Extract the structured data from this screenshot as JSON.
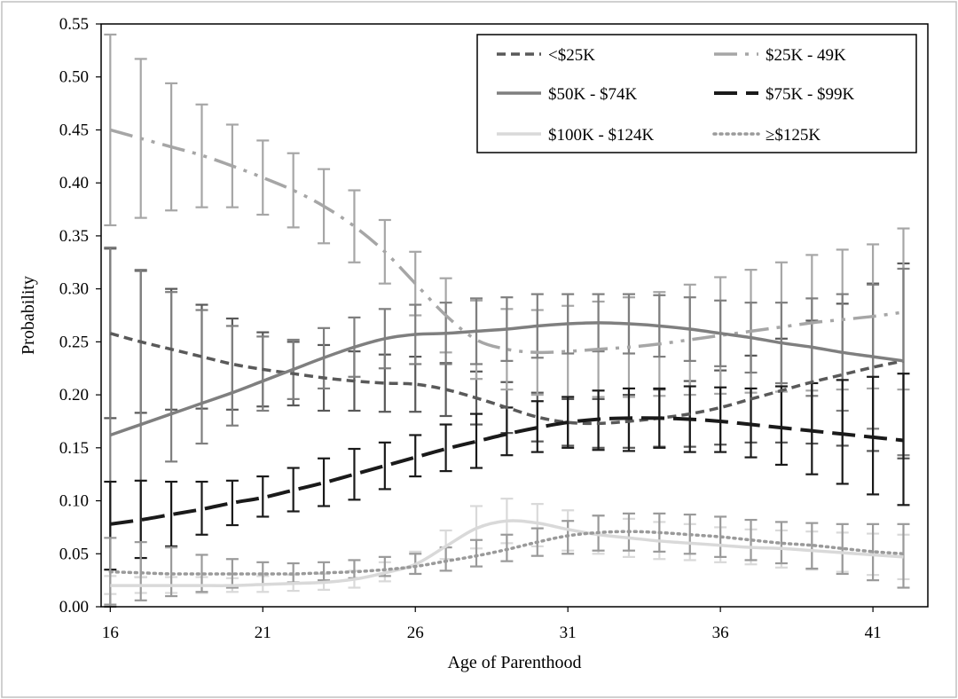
{
  "chart_data": {
    "type": "line",
    "title": "",
    "xlabel": "Age of Parenthood",
    "ylabel": "Probability",
    "xlim": [
      15.7,
      42.8
    ],
    "ylim": [
      0,
      0.55
    ],
    "x_ticks": [
      16,
      21,
      26,
      31,
      36,
      41
    ],
    "x_tick_labels": [
      "16",
      "21",
      "26",
      "31",
      "36",
      "41"
    ],
    "y_ticks": [
      0,
      0.05,
      0.1,
      0.15,
      0.2,
      0.25,
      0.3,
      0.35,
      0.4,
      0.45,
      0.5,
      0.55
    ],
    "y_tick_labels": [
      "0.00",
      "0.05",
      "0.10",
      "0.15",
      "0.20",
      "0.25",
      "0.30",
      "0.35",
      "0.40",
      "0.45",
      "0.50",
      "0.55"
    ],
    "grid": false,
    "legend_position": "top-right",
    "x": [
      16,
      17,
      18,
      19,
      20,
      21,
      22,
      23,
      24,
      25,
      26,
      27,
      28,
      29,
      30,
      31,
      32,
      33,
      34,
      35,
      36,
      37,
      38,
      39,
      40,
      41,
      42
    ],
    "series": [
      {
        "name": "<$25K",
        "color": "#595959",
        "dash": "10,6",
        "width": 3.5,
        "values": [
          0.258,
          0.25,
          0.243,
          0.236,
          0.229,
          0.224,
          0.22,
          0.216,
          0.213,
          0.211,
          0.21,
          0.205,
          0.197,
          0.188,
          0.179,
          0.174,
          0.173,
          0.175,
          0.178,
          0.182,
          0.188,
          0.196,
          0.204,
          0.212,
          0.219,
          0.226,
          0.232
        ],
        "lower": [
          0.178,
          0.183,
          0.186,
          0.187,
          0.186,
          0.189,
          0.19,
          0.185,
          0.185,
          0.184,
          0.184,
          0.18,
          0.172,
          0.164,
          0.156,
          0.152,
          0.15,
          0.15,
          0.151,
          0.151,
          0.153,
          0.155,
          0.155,
          0.154,
          0.152,
          0.147,
          0.14
        ],
        "upper": [
          0.338,
          0.317,
          0.3,
          0.285,
          0.272,
          0.259,
          0.25,
          0.247,
          0.241,
          0.238,
          0.236,
          0.23,
          0.222,
          0.212,
          0.202,
          0.196,
          0.196,
          0.2,
          0.205,
          0.213,
          0.223,
          0.237,
          0.253,
          0.27,
          0.286,
          0.305,
          0.324
        ]
      },
      {
        "name": "$25K - 49K",
        "color": "#a6a6a6",
        "dash": "26,9,4,9,4,9",
        "width": 3.5,
        "values": [
          0.45,
          0.442,
          0.434,
          0.426,
          0.416,
          0.405,
          0.393,
          0.378,
          0.359,
          0.335,
          0.305,
          0.275,
          0.252,
          0.243,
          0.24,
          0.241,
          0.243,
          0.245,
          0.248,
          0.252,
          0.256,
          0.26,
          0.264,
          0.268,
          0.271,
          0.274,
          0.278
        ],
        "lower": [
          0.36,
          0.367,
          0.374,
          0.377,
          0.377,
          0.37,
          0.358,
          0.343,
          0.325,
          0.305,
          0.275,
          0.24,
          0.215,
          0.205,
          0.2,
          0.198,
          0.198,
          0.198,
          0.199,
          0.2,
          0.201,
          0.202,
          0.203,
          0.204,
          0.205,
          0.206,
          0.205
        ],
        "upper": [
          0.54,
          0.517,
          0.494,
          0.474,
          0.455,
          0.44,
          0.428,
          0.413,
          0.393,
          0.365,
          0.335,
          0.31,
          0.289,
          0.281,
          0.28,
          0.284,
          0.288,
          0.292,
          0.297,
          0.304,
          0.311,
          0.318,
          0.325,
          0.332,
          0.337,
          0.342,
          0.357
        ]
      },
      {
        "name": "$50K - $74K",
        "color": "#7f7f7f",
        "dash": "",
        "width": 3.5,
        "values": [
          0.162,
          0.172,
          0.182,
          0.192,
          0.202,
          0.213,
          0.224,
          0.235,
          0.245,
          0.253,
          0.257,
          0.258,
          0.26,
          0.262,
          0.265,
          0.267,
          0.268,
          0.267,
          0.265,
          0.262,
          0.258,
          0.254,
          0.249,
          0.245,
          0.24,
          0.236,
          0.232
        ],
        "lower": [
          0.0,
          0.028,
          0.137,
          0.154,
          0.171,
          0.185,
          0.196,
          0.206,
          0.217,
          0.225,
          0.229,
          0.229,
          0.229,
          0.232,
          0.235,
          0.239,
          0.241,
          0.239,
          0.236,
          0.232,
          0.227,
          0.221,
          0.211,
          0.199,
          0.185,
          0.168,
          0.143
        ],
        "upper": [
          0.339,
          0.318,
          0.297,
          0.28,
          0.265,
          0.255,
          0.252,
          0.263,
          0.273,
          0.281,
          0.285,
          0.287,
          0.291,
          0.292,
          0.295,
          0.295,
          0.295,
          0.295,
          0.294,
          0.292,
          0.289,
          0.287,
          0.287,
          0.291,
          0.295,
          0.304,
          0.319
        ]
      },
      {
        "name": "$75K - $99K",
        "color": "#1a1a1a",
        "dash": "26,10",
        "width": 4,
        "values": [
          0.078,
          0.082,
          0.087,
          0.092,
          0.098,
          0.103,
          0.11,
          0.117,
          0.125,
          0.133,
          0.141,
          0.149,
          0.156,
          0.163,
          0.169,
          0.174,
          0.177,
          0.178,
          0.178,
          0.177,
          0.175,
          0.172,
          0.169,
          0.166,
          0.163,
          0.16,
          0.157
        ],
        "lower": [
          0.035,
          0.046,
          0.057,
          0.068,
          0.077,
          0.085,
          0.09,
          0.095,
          0.101,
          0.111,
          0.123,
          0.128,
          0.131,
          0.143,
          0.146,
          0.15,
          0.148,
          0.147,
          0.15,
          0.146,
          0.146,
          0.141,
          0.134,
          0.125,
          0.116,
          0.106,
          0.096
        ],
        "upper": [
          0.118,
          0.119,
          0.118,
          0.118,
          0.119,
          0.123,
          0.131,
          0.14,
          0.149,
          0.155,
          0.162,
          0.172,
          0.182,
          0.188,
          0.194,
          0.198,
          0.204,
          0.206,
          0.206,
          0.208,
          0.207,
          0.206,
          0.208,
          0.211,
          0.214,
          0.217,
          0.22
        ]
      },
      {
        "name": "$100K - $124K",
        "color": "#d9d9d9",
        "dash": "",
        "width": 3.5,
        "values": [
          0.02,
          0.02,
          0.02,
          0.02,
          0.02,
          0.021,
          0.022,
          0.023,
          0.026,
          0.032,
          0.04,
          0.057,
          0.074,
          0.081,
          0.079,
          0.073,
          0.068,
          0.065,
          0.062,
          0.06,
          0.058,
          0.056,
          0.055,
          0.053,
          0.051,
          0.049,
          0.047
        ],
        "lower": [
          0.012,
          0.013,
          0.013,
          0.013,
          0.014,
          0.014,
          0.015,
          0.016,
          0.018,
          0.024,
          0.031,
          0.045,
          0.055,
          0.06,
          0.057,
          0.053,
          0.05,
          0.047,
          0.045,
          0.044,
          0.042,
          0.04,
          0.037,
          0.035,
          0.033,
          0.03,
          0.026
        ],
        "upper": [
          0.029,
          0.028,
          0.028,
          0.028,
          0.027,
          0.029,
          0.03,
          0.031,
          0.034,
          0.042,
          0.052,
          0.072,
          0.095,
          0.102,
          0.097,
          0.091,
          0.086,
          0.083,
          0.08,
          0.078,
          0.075,
          0.073,
          0.072,
          0.071,
          0.07,
          0.069,
          0.068
        ]
      },
      {
        "name": "≥$125K",
        "color": "#9a9a9a",
        "dash": "2,5",
        "width": 3.5,
        "values": [
          0.033,
          0.032,
          0.031,
          0.031,
          0.031,
          0.031,
          0.031,
          0.032,
          0.033,
          0.035,
          0.038,
          0.043,
          0.048,
          0.054,
          0.061,
          0.067,
          0.07,
          0.071,
          0.07,
          0.068,
          0.066,
          0.063,
          0.06,
          0.058,
          0.055,
          0.052,
          0.05
        ],
        "lower": [
          0.002,
          0.006,
          0.01,
          0.014,
          0.018,
          0.021,
          0.023,
          0.025,
          0.027,
          0.029,
          0.031,
          0.034,
          0.038,
          0.043,
          0.048,
          0.05,
          0.053,
          0.053,
          0.052,
          0.05,
          0.047,
          0.044,
          0.041,
          0.036,
          0.031,
          0.025,
          0.018
        ],
        "upper": [
          0.065,
          0.061,
          0.056,
          0.049,
          0.045,
          0.042,
          0.041,
          0.042,
          0.044,
          0.047,
          0.05,
          0.056,
          0.063,
          0.068,
          0.074,
          0.081,
          0.086,
          0.088,
          0.088,
          0.087,
          0.085,
          0.082,
          0.08,
          0.079,
          0.078,
          0.078,
          0.078
        ]
      }
    ]
  }
}
